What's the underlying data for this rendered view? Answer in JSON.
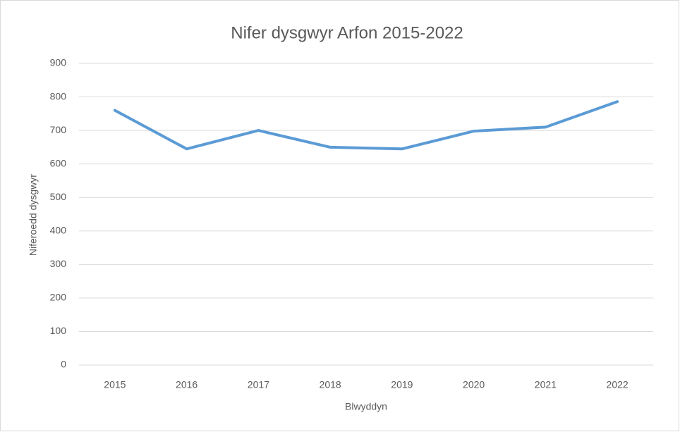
{
  "chart_data": {
    "type": "line",
    "title": "Nifer dysgwyr Arfon 2015-2022",
    "x_label": "Blwyddyn",
    "y_label": "Niferoedd dysgwyr",
    "categories": [
      "2015",
      "2016",
      "2017",
      "2018",
      "2019",
      "2020",
      "2021",
      "2022"
    ],
    "series": [
      {
        "name": "Niferoedd dysgwyr",
        "color": "#5b9bd5",
        "values": [
          760,
          645,
          700,
          650,
          645,
          698,
          710,
          786
        ]
      }
    ],
    "ylim": [
      0,
      900
    ],
    "yticks": [
      0,
      100,
      200,
      300,
      400,
      500,
      600,
      700,
      800,
      900
    ],
    "grid": true
  }
}
